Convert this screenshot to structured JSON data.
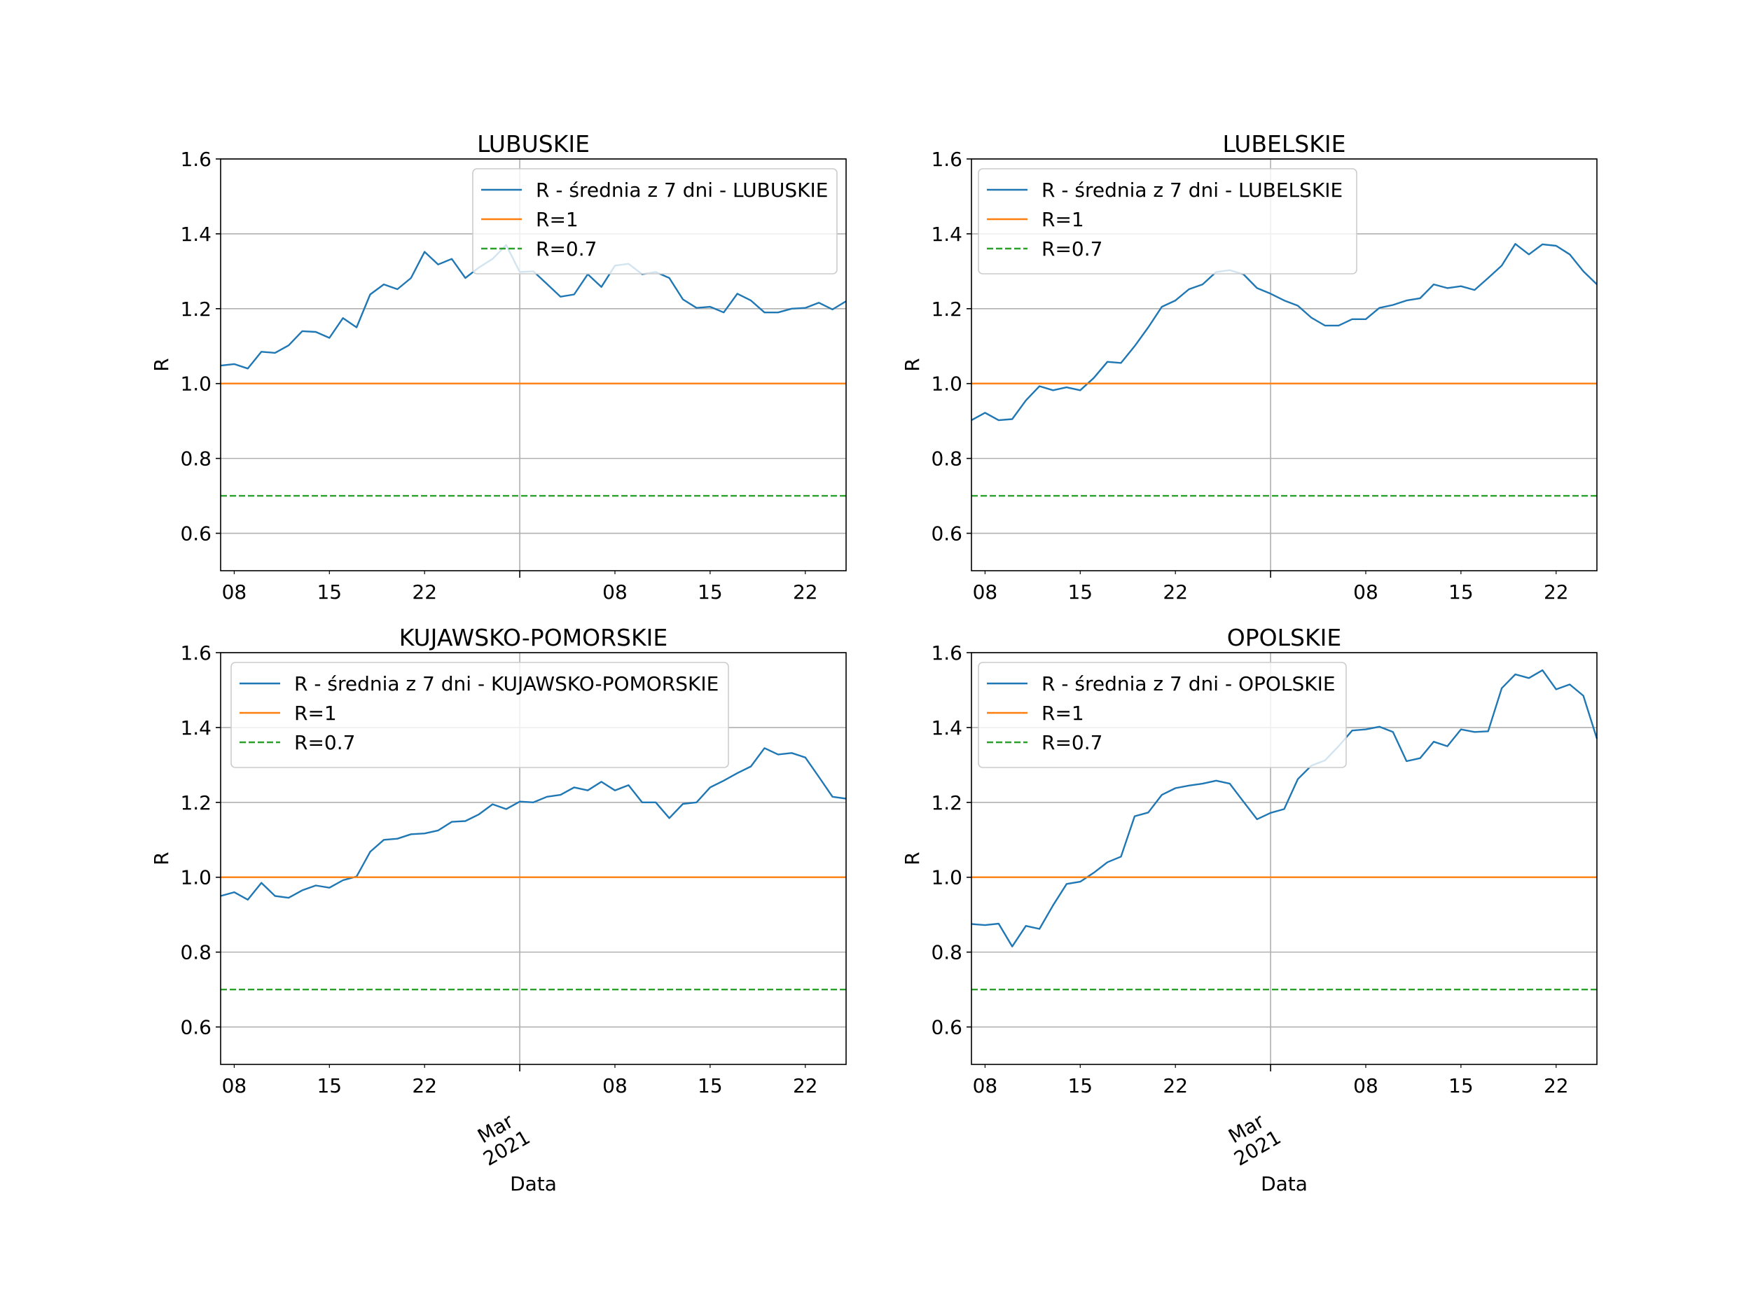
{
  "figure": {
    "xlabel": "Data",
    "month_label": [
      "Mar",
      "2021"
    ],
    "colors": {
      "series": "#1f77b4",
      "r1": "#ff7f0e",
      "r07": "#2ca02c",
      "grid": "#b0b0b0",
      "axes": "#000000"
    }
  },
  "chart_data": [
    {
      "type": "line",
      "title": "LUBUSKIE",
      "xlabel": "Data",
      "ylabel": "R",
      "ylim": [
        0.5,
        1.6
      ],
      "yticks": [
        "0.6",
        "0.8",
        "1.0",
        "1.2",
        "1.4",
        "1.6"
      ],
      "xlim": [
        "2021-02-07",
        "2021-03-25"
      ],
      "xticks": [
        {
          "date": "2021-02-08",
          "label": "08"
        },
        {
          "date": "2021-02-15",
          "label": "15"
        },
        {
          "date": "2021-02-22",
          "label": "22"
        },
        {
          "date": "2021-03-01",
          "label": ""
        },
        {
          "date": "2021-03-08",
          "label": "08"
        },
        {
          "date": "2021-03-15",
          "label": "15"
        },
        {
          "date": "2021-03-22",
          "label": "22"
        }
      ],
      "grid": true,
      "legend": "top-right",
      "x_start": "2021-02-07",
      "series": [
        {
          "name": "R - średnia z 7 dni - LUBUSKIE",
          "style": "solid",
          "values": [
            1.048,
            1.052,
            1.04,
            1.085,
            1.082,
            1.102,
            1.14,
            1.138,
            1.122,
            1.175,
            1.15,
            1.238,
            1.265,
            1.252,
            1.282,
            1.352,
            1.318,
            1.333,
            1.282,
            1.31,
            1.333,
            1.37,
            1.298,
            1.3,
            1.266,
            1.232,
            1.238,
            1.292,
            1.258,
            1.315,
            1.32,
            1.292,
            1.298,
            1.282,
            1.225,
            1.202,
            1.205,
            1.19,
            1.24,
            1.222,
            1.19,
            1.19,
            1.2,
            1.202,
            1.216,
            1.198,
            1.22
          ]
        },
        {
          "name": "R=1",
          "style": "solid",
          "constant": 1.0
        },
        {
          "name": "R=0.7",
          "style": "dashed",
          "constant": 0.7
        }
      ]
    },
    {
      "type": "line",
      "title": "LUBELSKIE",
      "xlabel": "Data",
      "ylabel": "R",
      "ylim": [
        0.5,
        1.6
      ],
      "yticks": [
        "0.6",
        "0.8",
        "1.0",
        "1.2",
        "1.4",
        "1.6"
      ],
      "xlim": [
        "2021-02-07",
        "2021-03-25"
      ],
      "xticks": [
        {
          "date": "2021-02-08",
          "label": "08"
        },
        {
          "date": "2021-02-15",
          "label": "15"
        },
        {
          "date": "2021-02-22",
          "label": "22"
        },
        {
          "date": "2021-03-01",
          "label": ""
        },
        {
          "date": "2021-03-08",
          "label": "08"
        },
        {
          "date": "2021-03-15",
          "label": "15"
        },
        {
          "date": "2021-03-22",
          "label": "22"
        }
      ],
      "grid": true,
      "legend": "top-left",
      "x_start": "2021-02-07",
      "series": [
        {
          "name": "R - średnia z 7 dni - LUBELSKIE",
          "style": "solid",
          "values": [
            0.902,
            0.922,
            0.902,
            0.905,
            0.955,
            0.993,
            0.982,
            0.99,
            0.982,
            1.015,
            1.058,
            1.055,
            1.1,
            1.15,
            1.205,
            1.222,
            1.252,
            1.265,
            1.298,
            1.303,
            1.292,
            1.255,
            1.24,
            1.222,
            1.208,
            1.176,
            1.155,
            1.155,
            1.172,
            1.172,
            1.202,
            1.21,
            1.222,
            1.228,
            1.265,
            1.255,
            1.26,
            1.25,
            1.282,
            1.315,
            1.373,
            1.345,
            1.372,
            1.368,
            1.345,
            1.3,
            1.265
          ]
        },
        {
          "name": "R=1",
          "style": "solid",
          "constant": 1.0
        },
        {
          "name": "R=0.7",
          "style": "dashed",
          "constant": 0.7
        }
      ]
    },
    {
      "type": "line",
      "title": "KUJAWSKO-POMORSKIE",
      "xlabel": "Data",
      "ylabel": "R",
      "ylim": [
        0.5,
        1.6
      ],
      "yticks": [
        "0.6",
        "0.8",
        "1.0",
        "1.2",
        "1.4",
        "1.6"
      ],
      "xlim": [
        "2021-02-07",
        "2021-03-25"
      ],
      "xticks": [
        {
          "date": "2021-02-08",
          "label": "08"
        },
        {
          "date": "2021-02-15",
          "label": "15"
        },
        {
          "date": "2021-02-22",
          "label": "22"
        },
        {
          "date": "2021-03-01",
          "label": ""
        },
        {
          "date": "2021-03-08",
          "label": "08"
        },
        {
          "date": "2021-03-15",
          "label": "15"
        },
        {
          "date": "2021-03-22",
          "label": "22"
        }
      ],
      "grid": true,
      "legend": "top-center",
      "x_start": "2021-02-07",
      "series": [
        {
          "name": "R - średnia z 7 dni - KUJAWSKO-POMORSKIE",
          "style": "solid",
          "values": [
            0.95,
            0.96,
            0.94,
            0.985,
            0.95,
            0.945,
            0.965,
            0.978,
            0.972,
            0.992,
            1.002,
            1.068,
            1.1,
            1.103,
            1.115,
            1.117,
            1.125,
            1.148,
            1.15,
            1.168,
            1.195,
            1.182,
            1.202,
            1.2,
            1.215,
            1.22,
            1.24,
            1.232,
            1.255,
            1.232,
            1.246,
            1.2,
            1.2,
            1.158,
            1.196,
            1.2,
            1.24,
            1.258,
            1.278,
            1.296,
            1.345,
            1.328,
            1.332,
            1.32,
            1.268,
            1.215,
            1.21
          ]
        },
        {
          "name": "R=1",
          "style": "solid",
          "constant": 1.0
        },
        {
          "name": "R=0.7",
          "style": "dashed",
          "constant": 0.7
        }
      ]
    },
    {
      "type": "line",
      "title": "OPOLSKIE",
      "xlabel": "Data",
      "ylabel": "R",
      "ylim": [
        0.5,
        1.6
      ],
      "yticks": [
        "0.6",
        "0.8",
        "1.0",
        "1.2",
        "1.4",
        "1.6"
      ],
      "xlim": [
        "2021-02-07",
        "2021-03-25"
      ],
      "xticks": [
        {
          "date": "2021-02-08",
          "label": "08"
        },
        {
          "date": "2021-02-15",
          "label": "15"
        },
        {
          "date": "2021-02-22",
          "label": "22"
        },
        {
          "date": "2021-03-01",
          "label": ""
        },
        {
          "date": "2021-03-08",
          "label": "08"
        },
        {
          "date": "2021-03-15",
          "label": "15"
        },
        {
          "date": "2021-03-22",
          "label": "22"
        }
      ],
      "grid": true,
      "legend": "top-left",
      "x_start": "2021-02-07",
      "series": [
        {
          "name": "R - średnia z 7 dni - OPOLSKIE",
          "style": "solid",
          "values": [
            0.875,
            0.872,
            0.876,
            0.815,
            0.87,
            0.862,
            0.925,
            0.982,
            0.988,
            1.012,
            1.04,
            1.055,
            1.163,
            1.173,
            1.22,
            1.238,
            1.245,
            1.25,
            1.258,
            1.25,
            1.202,
            1.155,
            1.172,
            1.182,
            1.262,
            1.298,
            1.312,
            1.35,
            1.392,
            1.395,
            1.402,
            1.388,
            1.31,
            1.318,
            1.362,
            1.35,
            1.395,
            1.388,
            1.39,
            1.505,
            1.542,
            1.532,
            1.553,
            1.502,
            1.515,
            1.485,
            1.37
          ]
        },
        {
          "name": "R=1",
          "style": "solid",
          "constant": 1.0
        },
        {
          "name": "R=0.7",
          "style": "dashed",
          "constant": 0.7
        }
      ]
    }
  ]
}
